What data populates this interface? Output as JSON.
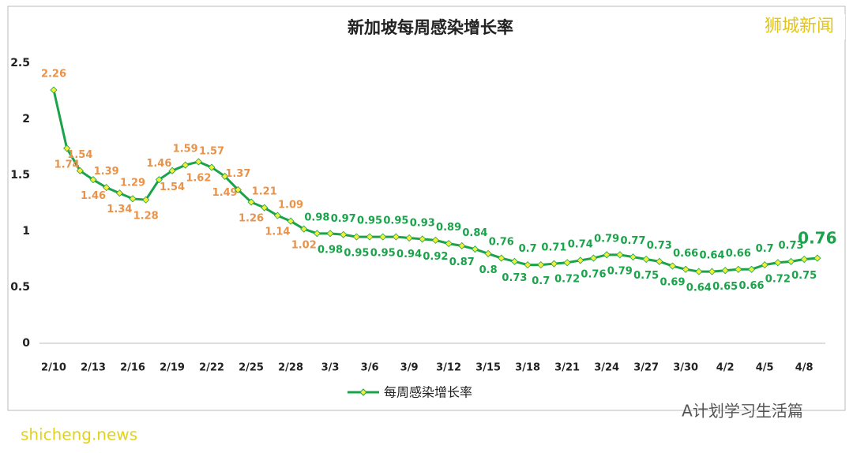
{
  "chart_data": {
    "type": "line",
    "title": "新加坡每周感染增长率",
    "categories": [
      "2/10",
      null,
      null,
      "2/13",
      null,
      null,
      "2/16",
      null,
      null,
      "2/19",
      null,
      null,
      "2/22",
      null,
      null,
      "2/25",
      null,
      null,
      "2/28",
      null,
      null,
      "3/3",
      null,
      null,
      "3/6",
      null,
      null,
      "3/9",
      null,
      null,
      "3/12",
      null,
      null,
      "3/15",
      null,
      null,
      "3/18",
      null,
      null,
      "3/21",
      null,
      null,
      "3/24",
      null,
      null,
      "3/27",
      null,
      null,
      "3/30",
      null,
      null,
      "4/2",
      null,
      null,
      "4/5",
      null,
      null,
      "4/8",
      null
    ],
    "series": [
      {
        "name": "每周感染增长率",
        "color": "#1aa34a",
        "marker_color": "#f2ee3a",
        "values": [
          2.26,
          1.74,
          1.54,
          1.46,
          1.39,
          1.34,
          1.29,
          1.28,
          1.46,
          1.54,
          1.59,
          1.62,
          1.57,
          1.49,
          1.37,
          1.26,
          1.21,
          1.14,
          1.09,
          1.02,
          0.98,
          0.98,
          0.97,
          0.95,
          0.95,
          0.95,
          0.95,
          0.94,
          0.93,
          0.92,
          0.89,
          0.87,
          0.84,
          0.8,
          0.76,
          0.73,
          0.7,
          0.7,
          0.71,
          0.72,
          0.74,
          0.76,
          0.79,
          0.79,
          0.77,
          0.75,
          0.73,
          0.69,
          0.66,
          0.64,
          0.64,
          0.65,
          0.66,
          0.66,
          0.7,
          0.72,
          0.73,
          0.75,
          0.76
        ],
        "label_colors": [
          "#e8924a",
          "#e8924a",
          "#e8924a",
          "#e8924a",
          "#e8924a",
          "#e8924a",
          "#e8924a",
          "#e8924a",
          "#e8924a",
          "#e8924a",
          "#e8924a",
          "#e8924a",
          "#e8924a",
          "#e8924a",
          "#e8924a",
          "#e8924a",
          "#e8924a",
          "#e8924a",
          "#e8924a",
          "#e8924a",
          "#1aa34a",
          "#1aa34a",
          "#1aa34a",
          "#1aa34a",
          "#1aa34a",
          "#1aa34a",
          "#1aa34a",
          "#1aa34a",
          "#1aa34a",
          "#1aa34a",
          "#1aa34a",
          "#1aa34a",
          "#1aa34a",
          "#1aa34a",
          "#1aa34a",
          "#1aa34a",
          "#1aa34a",
          "#1aa34a",
          "#1aa34a",
          "#1aa34a",
          "#1aa34a",
          "#1aa34a",
          "#1aa34a",
          "#1aa34a",
          "#1aa34a",
          "#1aa34a",
          "#1aa34a",
          "#1aa34a",
          "#1aa34a",
          "#1aa34a",
          "#1aa34a",
          "#1aa34a",
          "#1aa34a",
          "#1aa34a",
          "#1aa34a",
          "#1aa34a",
          "#1aa34a",
          "#1aa34a",
          "#1aa34a"
        ]
      }
    ],
    "ylim": [
      0,
      2.5
    ],
    "yticks": [
      0,
      0.5,
      1,
      1.5,
      2,
      2.5
    ],
    "grid": false,
    "legend": "bottom"
  },
  "watermarks": {
    "top_right": "狮城新闻",
    "bottom_right": "A计划学习生活篇",
    "bottom_left": "shicheng.news"
  }
}
